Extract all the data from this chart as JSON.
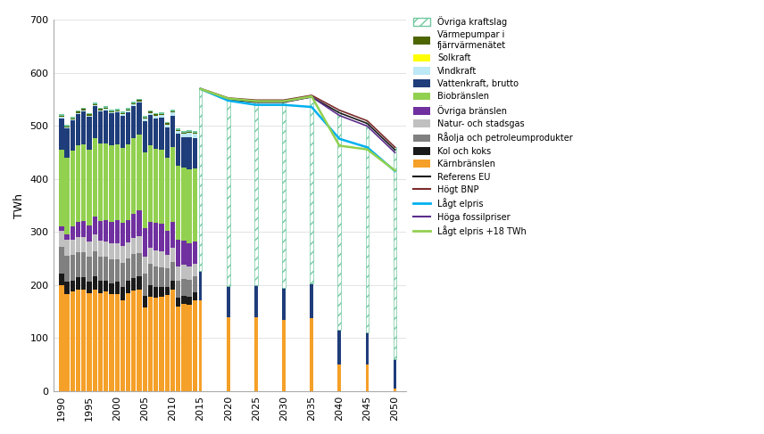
{
  "years_hist": [
    1990,
    1991,
    1992,
    1993,
    1994,
    1995,
    1996,
    1997,
    1998,
    1999,
    2000,
    2001,
    2002,
    2003,
    2004,
    2005,
    2006,
    2007,
    2008,
    2009,
    2010,
    2011,
    2012,
    2013,
    2014
  ],
  "years_fut": [
    2015,
    2020,
    2025,
    2030,
    2035,
    2040,
    2045,
    2050
  ],
  "hist_karnbranslen": [
    200,
    183,
    188,
    192,
    192,
    185,
    192,
    185,
    188,
    183,
    183,
    172,
    185,
    190,
    192,
    157,
    178,
    176,
    178,
    182,
    192,
    160,
    165,
    163,
    172
  ],
  "hist_kol_koks": [
    22,
    23,
    21,
    23,
    23,
    22,
    25,
    23,
    21,
    21,
    23,
    25,
    23,
    24,
    24,
    23,
    22,
    21,
    19,
    15,
    17,
    16,
    15,
    15,
    15
  ],
  "hist_raolja": [
    50,
    50,
    48,
    47,
    47,
    46,
    46,
    45,
    44,
    44,
    42,
    45,
    42,
    44,
    44,
    42,
    40,
    38,
    37,
    34,
    34,
    33,
    32,
    32,
    30
  ],
  "hist_natur": [
    30,
    29,
    28,
    28,
    29,
    30,
    32,
    31,
    30,
    31,
    31,
    32,
    31,
    31,
    32,
    32,
    31,
    30,
    29,
    26,
    28,
    27,
    26,
    25,
    24
  ],
  "hist_ovriga_branslen": [
    8,
    10,
    25,
    30,
    30,
    30,
    35,
    37,
    40,
    40,
    44,
    44,
    42,
    46,
    49,
    53,
    49,
    52,
    53,
    46,
    49,
    49,
    46,
    44,
    42
  ],
  "hist_biobranslen": [
    145,
    145,
    143,
    143,
    145,
    143,
    147,
    147,
    145,
    145,
    143,
    140,
    143,
    143,
    143,
    143,
    143,
    140,
    140,
    137,
    140,
    140,
    137,
    140,
    137
  ],
  "hist_vattenkraft": [
    60,
    55,
    58,
    60,
    62,
    62,
    60,
    60,
    62,
    60,
    60,
    62,
    60,
    60,
    60,
    60,
    58,
    58,
    60,
    58,
    60,
    60,
    58,
    60,
    58
  ],
  "hist_vindkraft": [
    2,
    2,
    2,
    2,
    2,
    2,
    2,
    2,
    2,
    2,
    2,
    2,
    3,
    3,
    3,
    4,
    4,
    5,
    5,
    5,
    6,
    6,
    7,
    8,
    8
  ],
  "hist_solkraft": [
    0,
    0,
    0,
    0,
    0,
    0,
    0,
    0,
    0,
    0,
    0,
    0,
    0,
    0,
    0,
    0,
    0,
    0,
    0,
    0,
    0,
    0,
    0,
    0,
    0
  ],
  "hist_varmepumpar": [
    2,
    2,
    2,
    2,
    2,
    2,
    2,
    2,
    2,
    2,
    2,
    2,
    2,
    2,
    2,
    2,
    2,
    2,
    2,
    2,
    2,
    2,
    2,
    2,
    2
  ],
  "hist_ovriga_kraft": [
    3,
    3,
    3,
    3,
    3,
    3,
    3,
    3,
    3,
    3,
    3,
    3,
    3,
    3,
    3,
    3,
    3,
    3,
    3,
    3,
    3,
    3,
    3,
    3,
    3
  ],
  "scenario_referens_eu": [
    570,
    550,
    545,
    545,
    555,
    525,
    505,
    455
  ],
  "scenario_hogt_bnp": [
    571,
    553,
    549,
    549,
    558,
    530,
    510,
    460
  ],
  "scenario_lagt_elpris": [
    570,
    548,
    540,
    540,
    536,
    476,
    460,
    415
  ],
  "scenario_hoga_fossil": [
    570,
    552,
    547,
    546,
    555,
    520,
    500,
    450
  ],
  "scenario_lagt_elpris_18twh": [
    570,
    552,
    547,
    547,
    556,
    463,
    456,
    416
  ],
  "fut_karnbranslen": [
    172,
    140,
    140,
    135,
    138,
    50,
    50,
    5
  ],
  "fut_vattenkraft": [
    55,
    58,
    60,
    60,
    65,
    65,
    60,
    55
  ],
  "colors": {
    "karnbranslen": "#f5a028",
    "kol_koks": "#1a1a1a",
    "raolja": "#808080",
    "natur": "#c0c0c0",
    "ovriga_branslen": "#7030a0",
    "biobranslen": "#92d050",
    "vattenkraft": "#1f3d7a",
    "vindkraft": "#bde8f5",
    "solkraft": "#ffff00",
    "varmepumpar": "#4d6600",
    "ovriga_kraft_hatch": "#70c8a0",
    "referens_eu": "#1a1a1a",
    "hogt_bnp": "#7b2b2b",
    "lagt_elpris": "#00b0f0",
    "hoga_fossil": "#5c2d8c",
    "lagt_elpris_18twh": "#92d050"
  },
  "ylabel": "TWh",
  "ylim": [
    0,
    700
  ],
  "yticks": [
    0,
    100,
    200,
    300,
    400,
    500,
    600,
    700
  ],
  "background_color": "#ffffff"
}
